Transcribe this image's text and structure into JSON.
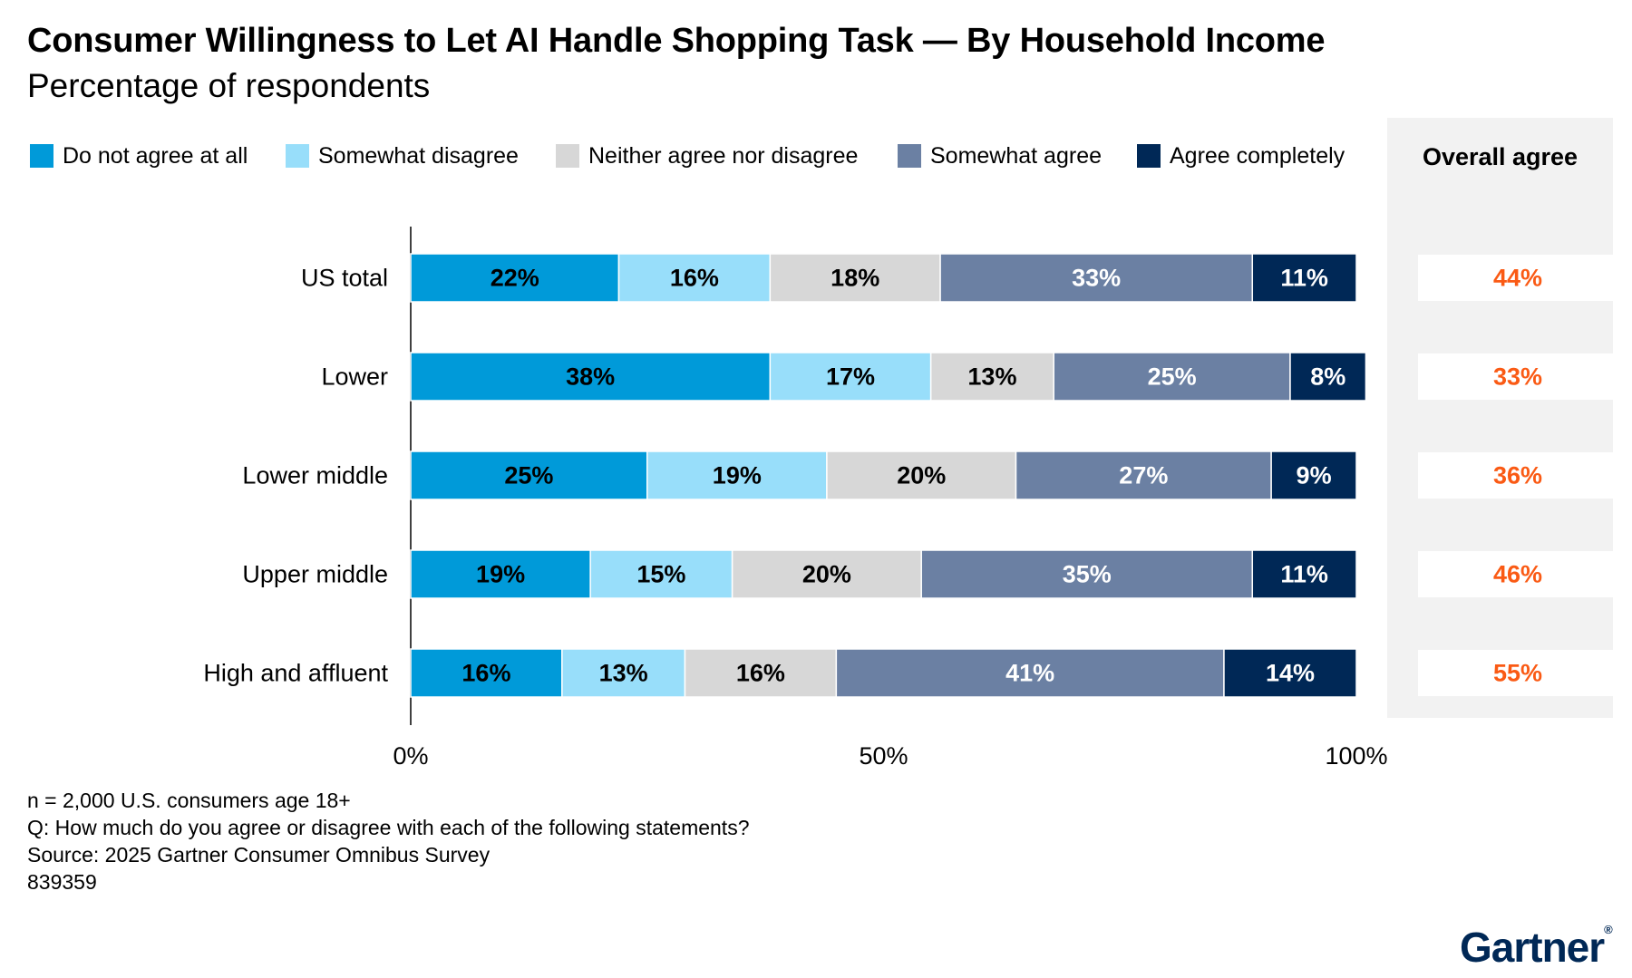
{
  "title": "Consumer Willingness to Let AI Handle Shopping Task — By Household Income",
  "subtitle": "Percentage of respondents",
  "overall_header": "Overall agree",
  "overall_color": "#fa5a14",
  "colors": {
    "do_not_agree": "#009ad9",
    "somewhat_disagree": "#98defa",
    "neither": "#d7d7d7",
    "somewhat_agree": "#6b80a3",
    "agree_completely": "#002856"
  },
  "legend": [
    {
      "label": "Do not agree at all",
      "color": "#009ad9"
    },
    {
      "label": "Somewhat disagree",
      "color": "#98defa"
    },
    {
      "label": "Neither agree nor disagree",
      "color": "#d7d7d7"
    },
    {
      "label": "Somewhat agree",
      "color": "#6b80a3"
    },
    {
      "label": "Agree completely",
      "color": "#002856"
    }
  ],
  "chart_data": {
    "type": "bar",
    "orientation": "horizontal",
    "stacked": true,
    "categories": [
      "US total",
      "Lower",
      "Lower middle",
      "Upper middle",
      "High and affluent"
    ],
    "series": [
      {
        "name": "Do not agree at all",
        "values": [
          22,
          38,
          25,
          19,
          16
        ],
        "labels": [
          "22%",
          "38%",
          "25%",
          "19%",
          "16%"
        ],
        "label_color": "#000000"
      },
      {
        "name": "Somewhat disagree",
        "values": [
          16,
          17,
          19,
          15,
          13
        ],
        "labels": [
          "16%",
          "17%",
          "19%",
          "15%",
          "13%"
        ],
        "label_color": "#000000"
      },
      {
        "name": "Neither agree nor disagree",
        "values": [
          18,
          13,
          20,
          20,
          16
        ],
        "labels": [
          "18%",
          "13%",
          "20%",
          "20%",
          "16%"
        ],
        "label_color": "#000000"
      },
      {
        "name": "Somewhat agree",
        "values": [
          33,
          25,
          27,
          35,
          41
        ],
        "labels": [
          "33%",
          "25%",
          "27%",
          "35%",
          "41%"
        ],
        "label_color": "#ffffff"
      },
      {
        "name": "Agree completely",
        "values": [
          11,
          8,
          9,
          11,
          14
        ],
        "labels": [
          "11%",
          "8%",
          "9%",
          "11%",
          "14%"
        ],
        "label_color": "#ffffff"
      }
    ],
    "overall_agree": [
      "44%",
      "33%",
      "36%",
      "46%",
      "55%"
    ],
    "xlim": [
      0,
      100
    ],
    "xticks": [
      0,
      50,
      100
    ],
    "xtick_labels": [
      "0%",
      "50%",
      "100%"
    ],
    "legend_position": "top",
    "grid": false
  },
  "footer": {
    "n": "n = 2,000 U.S. consumers age 18+",
    "question": "Q: How much do you agree or disagree with each of the following statements?",
    "source": "Source: 2025 Gartner Consumer Omnibus Survey",
    "id": "839359"
  },
  "logo": {
    "text": "Gartner",
    "mark": "®"
  }
}
